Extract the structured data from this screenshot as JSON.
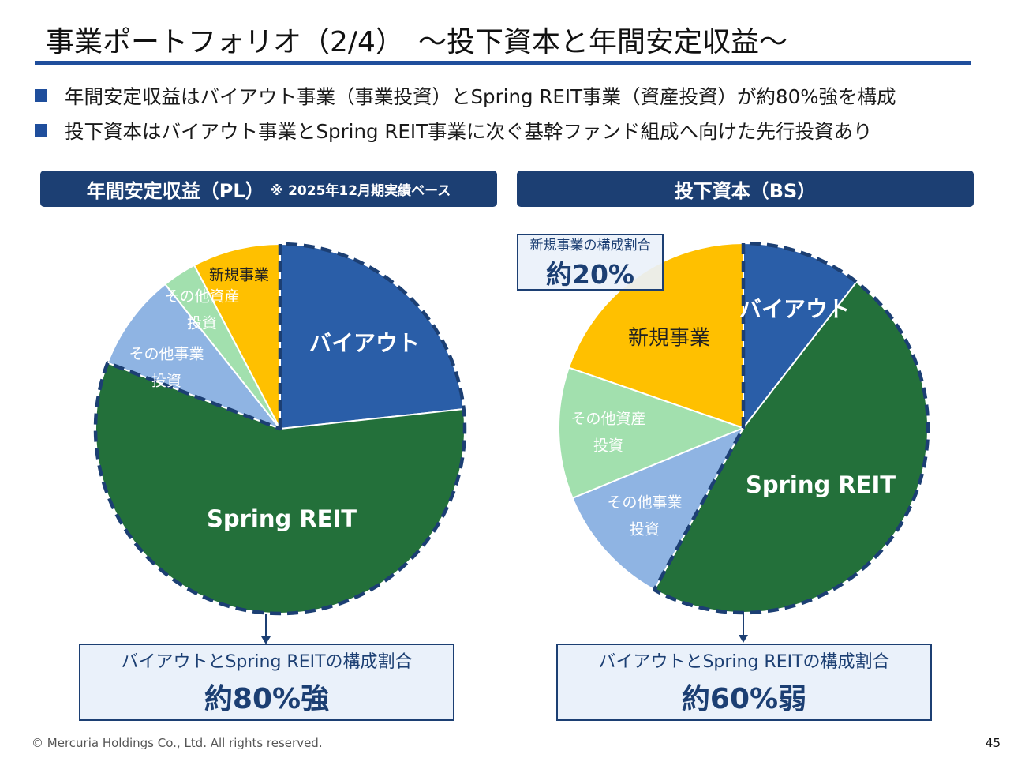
{
  "slide": {
    "title": "事業ポートフォリオ（2/4）　～投下資本と年間安定収益～",
    "bullets": [
      "年間安定収益はバイアウト事業（事業投資）とSpring REIT事業（資産投資）が約80%強を構成",
      "投下資本はバイアウト事業とSpring REIT事業に次ぐ基幹ファンド組成へ向けた先行投資あり"
    ],
    "footer": "© Mercuria Holdings Co., Ltd. All rights reserved.",
    "page_number": "45"
  },
  "colors": {
    "accent": "#1f4e9c",
    "header_bg": "#1c3f73",
    "buyout": "#2a5ea8",
    "spring": "#23703a",
    "other_business": "#8fb4e3",
    "other_asset": "#a2e0ae",
    "new_business": "#ffc000",
    "dash": "#1c3f73"
  },
  "left_panel": {
    "header": "年間安定収益（PL）",
    "header_note": "※ 2025年12月期実績ベース",
    "callout_caption": "バイアウトとSpring REITの構成割合",
    "callout_value": "約80%強"
  },
  "right_panel": {
    "header": "投下資本（BS）",
    "callout_caption": "バイアウトとSpring REITの構成割合",
    "callout_value": "約60%弱",
    "mini_callout_caption": "新規事業の構成割合",
    "mini_callout_value": "約20%"
  },
  "chart_data": [
    {
      "type": "pie",
      "title": "年間安定収益（PL）",
      "unit": "%",
      "slices": [
        {
          "label": "バイアウト",
          "value": 23.3,
          "color_key": "buyout"
        },
        {
          "label": "Spring REIT",
          "value": 57.5,
          "color_key": "spring"
        },
        {
          "label": "その他事業投資",
          "value": 8.5,
          "color_key": "other_business"
        },
        {
          "label": "その他資産投資",
          "value": 3.0,
          "color_key": "other_asset"
        },
        {
          "label": "新規事業",
          "value": 7.7,
          "color_key": "new_business"
        }
      ]
    },
    {
      "type": "pie",
      "title": "投下資本（BS）",
      "unit": "%",
      "slices": [
        {
          "label": "バイアウト",
          "value": 10.5,
          "color_key": "buyout"
        },
        {
          "label": "Spring REIT",
          "value": 47.5,
          "color_key": "spring"
        },
        {
          "label": "その他事業投資",
          "value": 10.8,
          "color_key": "other_business"
        },
        {
          "label": "その他資産投資",
          "value": 11.5,
          "color_key": "other_asset"
        },
        {
          "label": "新規事業",
          "value": 19.7,
          "color_key": "new_business"
        }
      ]
    }
  ]
}
